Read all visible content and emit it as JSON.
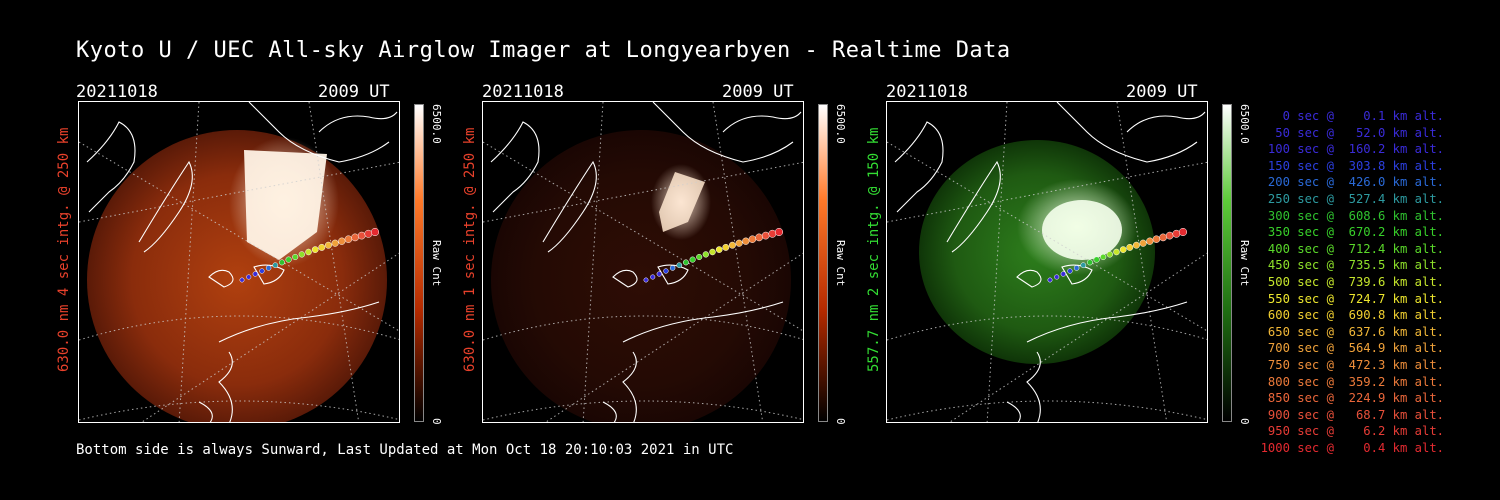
{
  "title": "Kyoto U / UEC All-sky Airglow Imager at Longyearbyen - Realtime Data",
  "footer": "Bottom side is always Sunward, Last Updated at Mon Oct 18 20:10:03 2021 in UTC",
  "panels": [
    {
      "date": "20211018",
      "time": "2009 UT",
      "ylabel": "630.0 nm 4 sec intg. @ 250 km",
      "label_color": "#e8412b",
      "cbar_max": "6500.0",
      "cbar_min": "0",
      "cbar_label": "Raw Cnt",
      "colors": [
        "#ffffff",
        "#ff7a2a",
        "#b42a00",
        "#000000"
      ]
    },
    {
      "date": "20211018",
      "time": "2009 UT",
      "ylabel": "630.0 nm 1 sec intg. @ 250 km",
      "label_color": "#e8412b",
      "cbar_max": "6500.0",
      "cbar_min": "0",
      "cbar_label": "Raw Cnt",
      "colors": [
        "#ffffff",
        "#ff7a2a",
        "#b42a00",
        "#000000"
      ]
    },
    {
      "date": "20211018",
      "time": "2009 UT",
      "ylabel": "557.7 nm 2 sec intg. @ 150 km",
      "label_color": "#33dd33",
      "cbar_max": "6500.0",
      "cbar_min": "0",
      "cbar_label": "Raw Cnt",
      "colors": [
        "#ffffff",
        "#5ecb3a",
        "#1f6e12",
        "#000000"
      ]
    }
  ],
  "legend": [
    {
      "text": "   0 sec @    0.1 km alt.",
      "color": "#3a2bd9"
    },
    {
      "text": "  50 sec @   52.0 km alt.",
      "color": "#3a2bd9"
    },
    {
      "text": " 100 sec @  160.2 km alt.",
      "color": "#3a2bd9"
    },
    {
      "text": " 150 sec @  303.8 km alt.",
      "color": "#2c3fe0"
    },
    {
      "text": " 200 sec @  426.0 km alt.",
      "color": "#2a6ad8"
    },
    {
      "text": " 250 sec @  527.4 km alt.",
      "color": "#2d9aa0"
    },
    {
      "text": " 300 sec @  608.6 km alt.",
      "color": "#2fc22f"
    },
    {
      "text": " 350 sec @  670.2 km alt.",
      "color": "#38d02a"
    },
    {
      "text": " 400 sec @  712.4 km alt.",
      "color": "#5ad82a"
    },
    {
      "text": " 450 sec @  735.5 km alt.",
      "color": "#8ee02a"
    },
    {
      "text": " 500 sec @  739.6 km alt.",
      "color": "#c6e62c"
    },
    {
      "text": " 550 sec @  724.7 km alt.",
      "color": "#ece62e"
    },
    {
      "text": " 600 sec @  690.8 km alt.",
      "color": "#f2d030"
    },
    {
      "text": " 650 sec @  637.6 km alt.",
      "color": "#f2b838"
    },
    {
      "text": " 700 sec @  564.9 km alt.",
      "color": "#f0a23a"
    },
    {
      "text": " 750 sec @  472.3 km alt.",
      "color": "#ee8e3a"
    },
    {
      "text": " 800 sec @  359.2 km alt.",
      "color": "#ec7a3a"
    },
    {
      "text": " 850 sec @  224.9 km alt.",
      "color": "#ea663a"
    },
    {
      "text": " 900 sec @   68.7 km alt.",
      "color": "#e8503a"
    },
    {
      "text": " 950 sec @    6.2 km alt.",
      "color": "#e63c36"
    },
    {
      "text": "1000 sec @    0.4 km alt.",
      "color": "#e42a30"
    }
  ]
}
